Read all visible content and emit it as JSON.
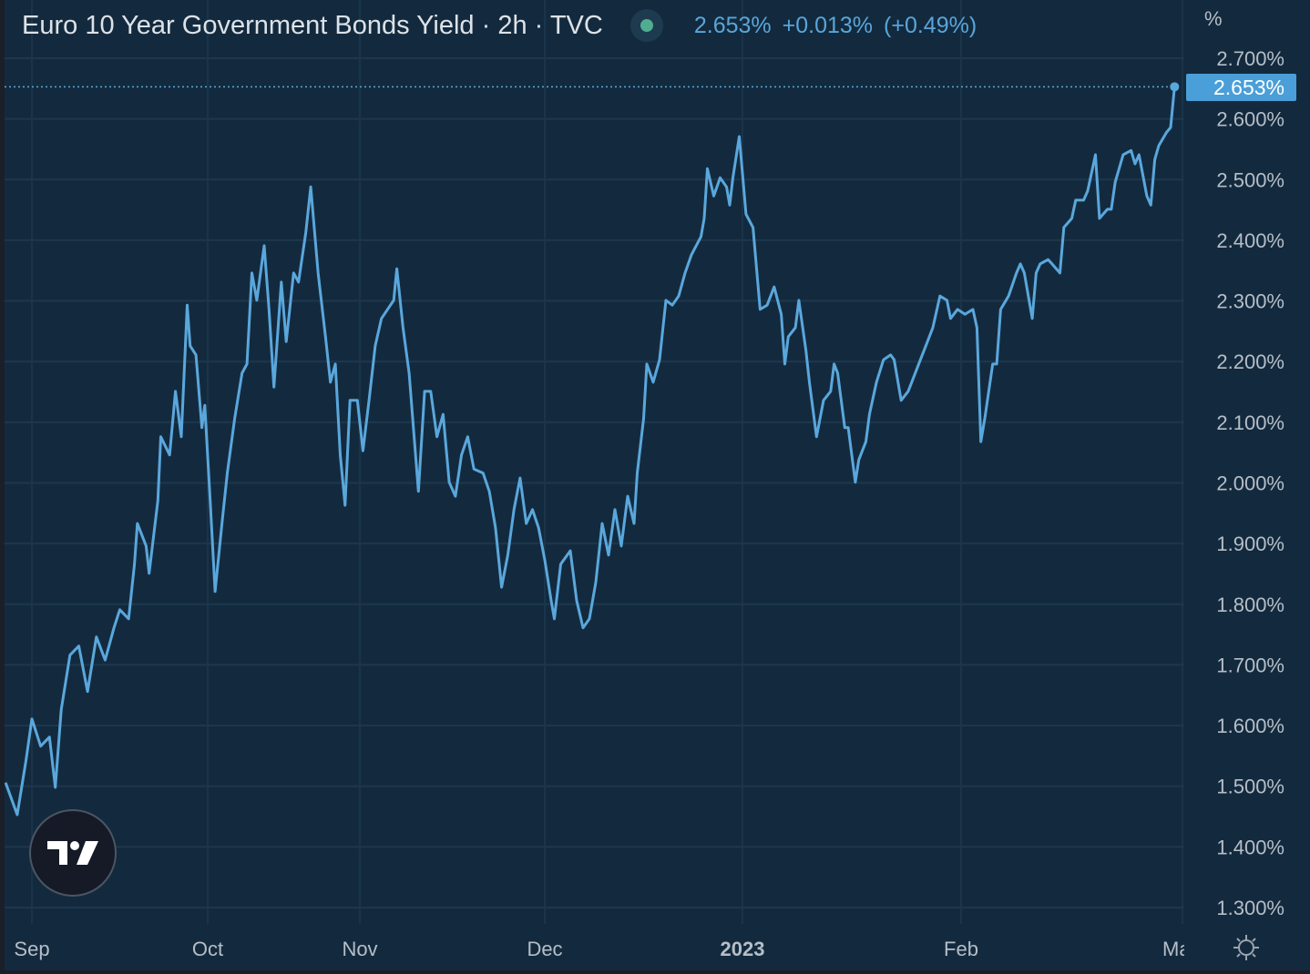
{
  "header": {
    "title": "Euro 10 Year Government Bonds Yield · 2h · TVC",
    "last": "2.653%",
    "change": "+0.013%",
    "change_pct": "(+0.49%)",
    "status_color": "#4fae90"
  },
  "axis_unit": "%",
  "price_label": "2.653%",
  "colors": {
    "background": "#132a3e",
    "line": "#5aa7dc",
    "grid": "#1d374d",
    "price_label_bg": "#4a9fd8"
  },
  "icons": {
    "logo": "tradingview-logo",
    "settings": "sun-settings-icon"
  },
  "chart_data": {
    "type": "line",
    "title": "Euro 10 Year Government Bonds Yield · 2h · TVC",
    "xlabel": "",
    "ylabel": "%",
    "ylim": [
      1.265,
      2.796
    ],
    "grid": true,
    "yticks": [
      "2.700%",
      "2.600%",
      "2.500%",
      "2.400%",
      "2.300%",
      "2.200%",
      "2.100%",
      "2.000%",
      "1.900%",
      "1.800%",
      "1.700%",
      "1.600%",
      "1.500%",
      "1.400%",
      "1.300%"
    ],
    "xticks": [
      {
        "label": "Sep",
        "date": "2022-09-01",
        "bold": false
      },
      {
        "label": "Oct",
        "date": "2022-10-01",
        "bold": false
      },
      {
        "label": "Nov",
        "date": "2022-11-01",
        "bold": false
      },
      {
        "label": "Dec",
        "date": "2022-12-01",
        "bold": false
      },
      {
        "label": "2023",
        "date": "2023-01-01",
        "bold": true
      },
      {
        "label": "Feb",
        "date": "2023-02-01",
        "bold": false
      },
      {
        "label": "Ma",
        "date": "2023-03-01",
        "bold": false
      }
    ],
    "last_value": 2.653,
    "points": [
      [
        "2022-08-27T12",
        1.506
      ],
      [
        "2022-08-29T12",
        1.453
      ],
      [
        "2022-08-31T00",
        1.543
      ],
      [
        "2022-09-01T00",
        1.611
      ],
      [
        "2022-09-02T12",
        1.566
      ],
      [
        "2022-09-04T00",
        1.581
      ],
      [
        "2022-09-05T00",
        1.498
      ],
      [
        "2022-09-06T00",
        1.626
      ],
      [
        "2022-09-07T12",
        1.716
      ],
      [
        "2022-09-09T00",
        1.731
      ],
      [
        "2022-09-10T12",
        1.656
      ],
      [
        "2022-09-12T00",
        1.746
      ],
      [
        "2022-09-13T12",
        1.708
      ],
      [
        "2022-09-15T00",
        1.761
      ],
      [
        "2022-09-16T00",
        1.791
      ],
      [
        "2022-09-17T12",
        1.776
      ],
      [
        "2022-09-18T12",
        1.866
      ],
      [
        "2022-09-19T00",
        1.933
      ],
      [
        "2022-09-20T12",
        1.896
      ],
      [
        "2022-09-21T00",
        1.851
      ],
      [
        "2022-09-22T12",
        1.971
      ],
      [
        "2022-09-23T00",
        2.076
      ],
      [
        "2022-09-24T12",
        2.046
      ],
      [
        "2022-09-25T12",
        2.151
      ],
      [
        "2022-09-26T12",
        2.076
      ],
      [
        "2022-09-27T12",
        2.293
      ],
      [
        "2022-09-28T00",
        2.226
      ],
      [
        "2022-09-29T00",
        2.211
      ],
      [
        "2022-09-30T00",
        2.091
      ],
      [
        "2022-09-30T12",
        2.128
      ],
      [
        "2022-10-01T12",
        1.971
      ],
      [
        "2022-10-02T12",
        1.821
      ],
      [
        "2022-10-04T00",
        1.941
      ],
      [
        "2022-10-05T00",
        2.016
      ],
      [
        "2022-10-06T12",
        2.106
      ],
      [
        "2022-10-08T00",
        2.181
      ],
      [
        "2022-10-09T00",
        2.196
      ],
      [
        "2022-10-10T00",
        2.346
      ],
      [
        "2022-10-11T00",
        2.301
      ],
      [
        "2022-10-12T12",
        2.391
      ],
      [
        "2022-10-13T12",
        2.286
      ],
      [
        "2022-10-14T12",
        2.158
      ],
      [
        "2022-10-16T00",
        2.331
      ],
      [
        "2022-10-17T00",
        2.233
      ],
      [
        "2022-10-18T12",
        2.346
      ],
      [
        "2022-10-19T12",
        2.331
      ],
      [
        "2022-10-21T00",
        2.413
      ],
      [
        "2022-10-22T00",
        2.488
      ],
      [
        "2022-10-23T12",
        2.346
      ],
      [
        "2022-10-25T00",
        2.241
      ],
      [
        "2022-10-26T00",
        2.166
      ],
      [
        "2022-10-27T00",
        2.196
      ],
      [
        "2022-10-28T00",
        2.046
      ],
      [
        "2022-10-29T00",
        1.963
      ],
      [
        "2022-10-30T00",
        2.136
      ],
      [
        "2022-10-31T12",
        2.136
      ],
      [
        "2022-11-01T12",
        2.053
      ],
      [
        "2022-11-02T12",
        2.136
      ],
      [
        "2022-11-03T12",
        2.226
      ],
      [
        "2022-11-04T12",
        2.271
      ],
      [
        "2022-11-05T12",
        2.286
      ],
      [
        "2022-11-06T12",
        2.301
      ],
      [
        "2022-11-07T00",
        2.353
      ],
      [
        "2022-11-08T00",
        2.256
      ],
      [
        "2022-11-09T00",
        2.181
      ],
      [
        "2022-11-10T12",
        1.986
      ],
      [
        "2022-11-11T12",
        2.151
      ],
      [
        "2022-11-12T12",
        2.151
      ],
      [
        "2022-11-13T12",
        2.076
      ],
      [
        "2022-11-14T12",
        2.113
      ],
      [
        "2022-11-15T12",
        2.001
      ],
      [
        "2022-11-16T12",
        1.978
      ],
      [
        "2022-11-17T12",
        2.046
      ],
      [
        "2022-11-18T12",
        2.076
      ],
      [
        "2022-11-19T12",
        2.023
      ],
      [
        "2022-11-21T00",
        2.016
      ],
      [
        "2022-11-22T00",
        1.986
      ],
      [
        "2022-11-23T00",
        1.926
      ],
      [
        "2022-11-24T00",
        1.828
      ],
      [
        "2022-11-25T00",
        1.881
      ],
      [
        "2022-11-26T00",
        1.956
      ],
      [
        "2022-11-27T00",
        2.008
      ],
      [
        "2022-11-28T00",
        1.933
      ],
      [
        "2022-11-29T00",
        1.956
      ],
      [
        "2022-11-30T00",
        1.926
      ],
      [
        "2022-12-01T00",
        1.873
      ],
      [
        "2022-12-02T00",
        1.806
      ],
      [
        "2022-12-02T12",
        1.776
      ],
      [
        "2022-12-03T12",
        1.866
      ],
      [
        "2022-12-05T00",
        1.888
      ],
      [
        "2022-12-06T00",
        1.806
      ],
      [
        "2022-12-07T00",
        1.761
      ],
      [
        "2022-12-08T00",
        1.776
      ],
      [
        "2022-12-09T00",
        1.836
      ],
      [
        "2022-12-10T00",
        1.933
      ],
      [
        "2022-12-11T00",
        1.881
      ],
      [
        "2022-12-12T00",
        1.956
      ],
      [
        "2022-12-13T00",
        1.896
      ],
      [
        "2022-12-14T00",
        1.978
      ],
      [
        "2022-12-15T00",
        1.933
      ],
      [
        "2022-12-15T12",
        2.016
      ],
      [
        "2022-12-16T12",
        2.106
      ],
      [
        "2022-12-17T00",
        2.196
      ],
      [
        "2022-12-18T00",
        2.166
      ],
      [
        "2022-12-19T00",
        2.203
      ],
      [
        "2022-12-20T00",
        2.301
      ],
      [
        "2022-12-21T00",
        2.293
      ],
      [
        "2022-12-22T00",
        2.308
      ],
      [
        "2022-12-23T00",
        2.346
      ],
      [
        "2022-12-24T00",
        2.376
      ],
      [
        "2022-12-25T12",
        2.406
      ],
      [
        "2022-12-26T00",
        2.436
      ],
      [
        "2022-12-26T12",
        2.518
      ],
      [
        "2022-12-27T12",
        2.473
      ],
      [
        "2022-12-28T12",
        2.503
      ],
      [
        "2022-12-29T12",
        2.488
      ],
      [
        "2022-12-30T00",
        2.458
      ],
      [
        "2022-12-30T12",
        2.503
      ],
      [
        "2022-12-31T12",
        2.571
      ],
      [
        "2023-01-01T12",
        2.443
      ],
      [
        "2023-01-02T12",
        2.421
      ],
      [
        "2023-01-03T00",
        2.353
      ],
      [
        "2023-01-03T12",
        2.286
      ],
      [
        "2023-01-04T12",
        2.293
      ],
      [
        "2023-01-05T12",
        2.323
      ],
      [
        "2023-01-06T12",
        2.278
      ],
      [
        "2023-01-07T00",
        2.196
      ],
      [
        "2023-01-07T12",
        2.241
      ],
      [
        "2023-01-08T12",
        2.256
      ],
      [
        "2023-01-09T00",
        2.301
      ],
      [
        "2023-01-10T00",
        2.218
      ],
      [
        "2023-01-10T12",
        2.166
      ],
      [
        "2023-01-11T12",
        2.076
      ],
      [
        "2023-01-12T12",
        2.136
      ],
      [
        "2023-01-13T12",
        2.151
      ],
      [
        "2023-01-14T00",
        2.196
      ],
      [
        "2023-01-14T12",
        2.181
      ],
      [
        "2023-01-15T12",
        2.091
      ],
      [
        "2023-01-16T00",
        2.091
      ],
      [
        "2023-01-17T00",
        2.001
      ],
      [
        "2023-01-17T12",
        2.038
      ],
      [
        "2023-01-18T12",
        2.068
      ],
      [
        "2023-01-19T00",
        2.113
      ],
      [
        "2023-01-20T00",
        2.166
      ],
      [
        "2023-01-21T00",
        2.203
      ],
      [
        "2023-01-22T00",
        2.211
      ],
      [
        "2023-01-22T12",
        2.203
      ],
      [
        "2023-01-23T12",
        2.136
      ],
      [
        "2023-01-24T12",
        2.151
      ],
      [
        "2023-01-25T00",
        2.166
      ],
      [
        "2023-01-26T00",
        2.196
      ],
      [
        "2023-01-27T00",
        2.226
      ],
      [
        "2023-01-28T00",
        2.256
      ],
      [
        "2023-01-29T00",
        2.308
      ],
      [
        "2023-01-30T00",
        2.301
      ],
      [
        "2023-01-30T12",
        2.271
      ],
      [
        "2023-01-31T12",
        2.286
      ],
      [
        "2023-02-01T12",
        2.278
      ],
      [
        "2023-02-02T12",
        2.286
      ],
      [
        "2023-02-03T00",
        2.256
      ],
      [
        "2023-02-03T12",
        2.068
      ],
      [
        "2023-02-04T00",
        2.106
      ],
      [
        "2023-02-05T00",
        2.196
      ],
      [
        "2023-02-05T12",
        2.196
      ],
      [
        "2023-02-06T00",
        2.286
      ],
      [
        "2023-02-07T00",
        2.308
      ],
      [
        "2023-02-08T00",
        2.346
      ],
      [
        "2023-02-08T12",
        2.361
      ],
      [
        "2023-02-09T00",
        2.346
      ],
      [
        "2023-02-10T00",
        2.271
      ],
      [
        "2023-02-10T12",
        2.346
      ],
      [
        "2023-02-11T00",
        2.361
      ],
      [
        "2023-02-12T00",
        2.368
      ],
      [
        "2023-02-12T12",
        2.361
      ],
      [
        "2023-02-13T12",
        2.346
      ],
      [
        "2023-02-14T00",
        2.421
      ],
      [
        "2023-02-15T00",
        2.436
      ],
      [
        "2023-02-15T12",
        2.466
      ],
      [
        "2023-02-16T12",
        2.466
      ],
      [
        "2023-02-17T00",
        2.481
      ],
      [
        "2023-02-18T00",
        2.541
      ],
      [
        "2023-02-18T12",
        2.436
      ],
      [
        "2023-02-19T12",
        2.451
      ],
      [
        "2023-02-20T00",
        2.451
      ],
      [
        "2023-02-20T12",
        2.496
      ],
      [
        "2023-02-21T12",
        2.541
      ],
      [
        "2023-02-22T12",
        2.548
      ],
      [
        "2023-02-23T00",
        2.526
      ],
      [
        "2023-02-23T12",
        2.541
      ],
      [
        "2023-02-24T12",
        2.473
      ],
      [
        "2023-02-25T00",
        2.458
      ],
      [
        "2023-02-25T12",
        2.533
      ],
      [
        "2023-02-26T00",
        2.556
      ],
      [
        "2023-02-27T00",
        2.578
      ],
      [
        "2023-02-27T12",
        2.586
      ],
      [
        "2023-02-28T00",
        2.653
      ]
    ]
  }
}
